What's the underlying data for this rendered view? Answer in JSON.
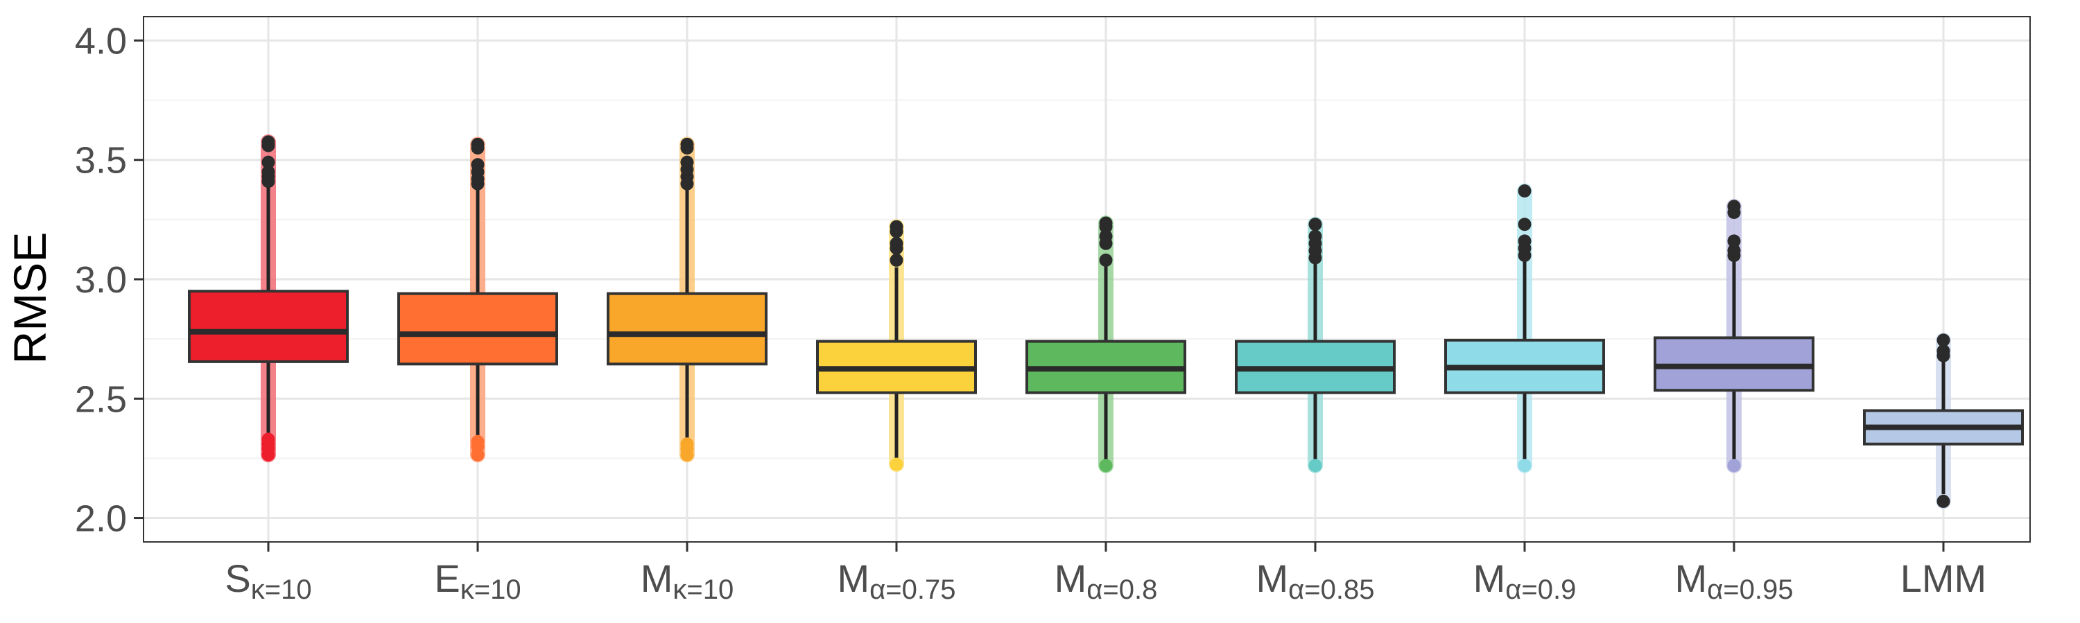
{
  "chart_data": {
    "type": "boxplot",
    "ylabel": "RMSE",
    "ylim": [
      1.9,
      4.1
    ],
    "yticks": [
      2.0,
      2.5,
      3.0,
      3.5,
      4.0
    ],
    "ytick_labels": [
      "2.0",
      "2.5",
      "3.0",
      "3.5",
      "4.0"
    ],
    "grid": true,
    "categories": [
      {
        "base": "S",
        "sub": "κ=10"
      },
      {
        "base": "E",
        "sub": "κ=10"
      },
      {
        "base": "M",
        "sub": "κ=10"
      },
      {
        "base": "M",
        "sub": "α=0.75"
      },
      {
        "base": "M",
        "sub": "α=0.8"
      },
      {
        "base": "M",
        "sub": "α=0.85"
      },
      {
        "base": "M",
        "sub": "α=0.9"
      },
      {
        "base": "M",
        "sub": "α=0.95"
      },
      {
        "base": "LMM",
        "sub": ""
      }
    ],
    "boxes": [
      {
        "color": "#ed1f2c",
        "q1": 2.655,
        "median": 2.78,
        "q3": 2.95,
        "whisker_low": 2.34,
        "whisker_high": 3.39,
        "outliers": [
          2.265,
          2.29,
          2.31,
          2.33,
          3.41,
          3.43,
          3.45,
          3.49,
          3.56,
          3.575
        ]
      },
      {
        "color": "#ff6f31",
        "q1": 2.645,
        "median": 2.77,
        "q3": 2.94,
        "whisker_low": 2.33,
        "whisker_high": 3.38,
        "outliers": [
          2.265,
          2.3,
          2.32,
          3.4,
          3.42,
          3.45,
          3.48,
          3.55,
          3.565
        ]
      },
      {
        "color": "#f9a72b",
        "q1": 2.645,
        "median": 2.77,
        "q3": 2.94,
        "whisker_low": 2.33,
        "whisker_high": 3.38,
        "outliers": [
          2.265,
          2.29,
          2.31,
          3.4,
          3.43,
          3.46,
          3.49,
          3.55,
          3.565
        ]
      },
      {
        "color": "#fbd13c",
        "q1": 2.525,
        "median": 2.625,
        "q3": 2.74,
        "whisker_low": 2.225,
        "whisker_high": 3.05,
        "outliers": [
          2.225,
          3.08,
          3.13,
          3.15,
          3.2,
          3.22
        ]
      },
      {
        "color": "#5eb95e",
        "q1": 2.525,
        "median": 2.625,
        "q3": 2.74,
        "whisker_low": 2.22,
        "whisker_high": 3.06,
        "outliers": [
          2.22,
          3.08,
          3.15,
          3.18,
          3.22,
          3.235
        ]
      },
      {
        "color": "#66cbc6",
        "q1": 2.525,
        "median": 2.625,
        "q3": 2.74,
        "whisker_low": 2.22,
        "whisker_high": 3.07,
        "outliers": [
          2.22,
          3.09,
          3.12,
          3.15,
          3.18,
          3.23
        ]
      },
      {
        "color": "#8fdbe8",
        "q1": 2.525,
        "median": 2.63,
        "q3": 2.745,
        "whisker_low": 2.22,
        "whisker_high": 3.08,
        "outliers": [
          2.22,
          3.1,
          3.13,
          3.16,
          3.23,
          3.37
        ]
      },
      {
        "color": "#a1a3d8",
        "q1": 2.535,
        "median": 2.635,
        "q3": 2.755,
        "whisker_low": 2.22,
        "whisker_high": 3.08,
        "outliers": [
          2.22,
          3.1,
          3.12,
          3.16,
          3.28,
          3.305
        ]
      },
      {
        "color": "#b5c8e5",
        "q1": 2.31,
        "median": 2.38,
        "q3": 2.45,
        "whisker_low": 2.1,
        "whisker_high": 2.66,
        "outliers": [
          2.07,
          2.68,
          2.7,
          2.745
        ]
      }
    ]
  }
}
